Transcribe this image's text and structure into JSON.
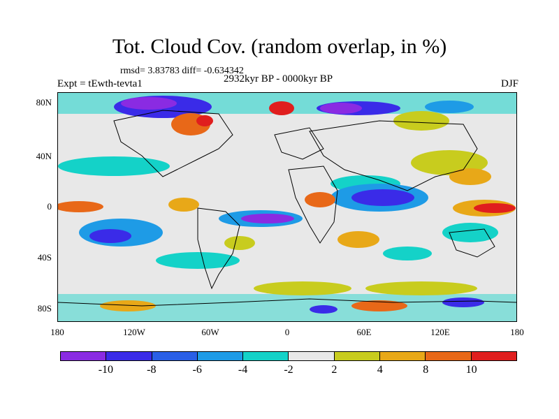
{
  "header": {
    "title": "Tot. Cloud Cov. (random overlap, in %)",
    "stats": "rmsd= 3.83783 diff= -0.634342",
    "experiment": "Expt = tEwth-tevta1",
    "period": "2932kyr BP - 0000kyr BP",
    "season": "DJF"
  },
  "map": {
    "projection": "cylindrical equidistant",
    "field": "cloud cover difference",
    "y_ticks": [
      "80N",
      "40N",
      "0",
      "40S",
      "80S"
    ],
    "x_ticks": [
      "180",
      "120W",
      "60W",
      "0",
      "60E",
      "120E",
      "180"
    ]
  },
  "colorbar": {
    "labels": [
      "-10",
      "-8",
      "-6",
      "-4",
      "-2",
      "2",
      "4",
      "8",
      "10"
    ],
    "colors": [
      "#8a2be2",
      "#3a2be8",
      "#2a5fe6",
      "#1e9be6",
      "#14d2c8",
      "#e8e8e8",
      "#c8cc1e",
      "#e8a818",
      "#e86818",
      "#e01e1e"
    ]
  }
}
